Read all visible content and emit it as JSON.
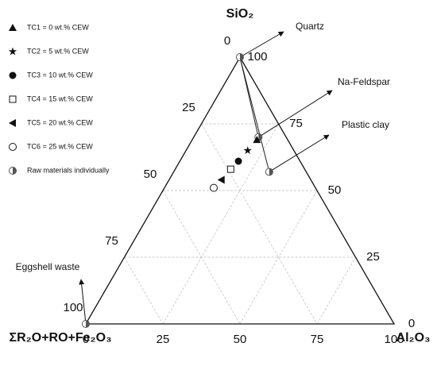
{
  "chart_data": {
    "type": "ternary",
    "axes": [
      {
        "title": "SiO₂",
        "ticks": [
          0,
          25,
          50,
          75,
          100
        ]
      },
      {
        "title": "Al₂O₃",
        "ticks": [
          0,
          25,
          50,
          75,
          100
        ]
      },
      {
        "title": "ΣR₂O+RO+Fe₂O₃",
        "ticks": [
          0,
          25,
          50,
          75,
          100
        ]
      }
    ],
    "lim": [
      0,
      100
    ],
    "grid": true,
    "legend": "upper left",
    "series": [
      {
        "name": "TC1 = 0 wt.% CEW",
        "marker": "triangle-up",
        "color": "#111111",
        "values": [
          69,
          21,
          10
        ]
      },
      {
        "name": "TC2 = 5 wt.% CEW",
        "marker": "star",
        "color": "#111111",
        "values": [
          65,
          20,
          15
        ]
      },
      {
        "name": "TC3 = 10 wt.% CEW",
        "marker": "circle",
        "color": "#111111",
        "values": [
          61,
          19,
          20
        ]
      },
      {
        "name": "TC4 = 15 wt.% CEW",
        "marker": "square-open",
        "color": "#111111",
        "values": [
          58,
          18,
          24
        ]
      },
      {
        "name": "TC5 = 20 wt.% CEW",
        "marker": "triangle-left",
        "color": "#111111",
        "values": [
          54,
          17,
          29
        ]
      },
      {
        "name": "TC6 = 25 wt.% CEW",
        "marker": "circle-open",
        "color": "#111111",
        "values": [
          51,
          16,
          33
        ]
      }
    ],
    "raw_materials": {
      "name": "Raw materials individually",
      "marker": "half-circle",
      "color": "#555555",
      "points": [
        {
          "label": "Quartz",
          "values": [
            100,
            0,
            0
          ]
        },
        {
          "label": "Na-Feldspar",
          "values": [
            70,
            21,
            9
          ]
        },
        {
          "label": "Plastic clay",
          "values": [
            57,
            31,
            12
          ]
        },
        {
          "label": "Eggshell waste",
          "values": [
            0,
            0,
            100
          ]
        }
      ]
    }
  }
}
